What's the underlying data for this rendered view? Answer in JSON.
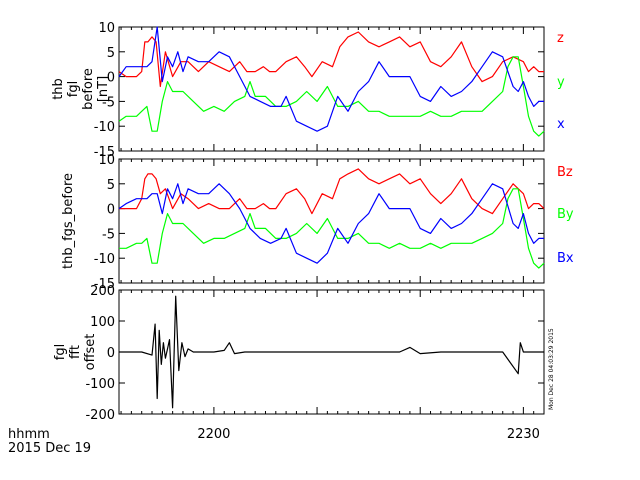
{
  "colors": {
    "x": "#0000ff",
    "y": "#00ff00",
    "z": "#ff0000",
    "axis": "#000000"
  },
  "chart_data": [
    {
      "type": "line",
      "ylabel": [
        "thb",
        "fgl",
        "before",
        "[nT]"
      ],
      "ylim": [
        -15,
        10
      ],
      "yticks": [
        -15,
        -10,
        -5,
        0,
        5,
        10
      ],
      "xlim": [
        2190.8,
        2232.0
      ],
      "legend_position": "right",
      "series": [
        {
          "name": "z",
          "color": "#ff0000",
          "x": [
            2190.8,
            2191.5,
            2192.5,
            2193.0,
            2193.3,
            2193.6,
            2194.0,
            2194.4,
            2194.8,
            2195.3,
            2196.0,
            2196.8,
            2197.5,
            2198.5,
            2199.5,
            2200.5,
            2201.5,
            2202.5,
            2203.2,
            2204.0,
            2204.8,
            2205.4,
            2206.0,
            2207.0,
            2208.0,
            2208.8,
            2209.5,
            2210.5,
            2211.5,
            2212.2,
            2213.0,
            2214.0,
            2215.0,
            2216.0,
            2217.0,
            2218.0,
            2219.0,
            2220.0,
            2221.0,
            2222.0,
            2223.0,
            2224.0,
            2225.0,
            2226.0,
            2227.0,
            2228.0,
            2229.0,
            2230.0,
            2230.5,
            2231.0,
            2231.5,
            2232.0
          ],
          "y": [
            1,
            0,
            0,
            1,
            7,
            7,
            8,
            7,
            -2,
            5,
            0,
            3,
            3,
            1,
            3,
            2,
            1,
            3,
            1,
            1,
            2,
            1,
            1,
            3,
            4,
            2,
            0,
            3,
            2,
            6,
            8,
            9,
            7,
            6,
            7,
            8,
            6,
            7,
            3,
            2,
            4,
            7,
            2,
            -1,
            0,
            3,
            4,
            3,
            1,
            2,
            1,
            1
          ]
        },
        {
          "name": "y",
          "color": "#00ff00",
          "x": [
            2190.8,
            2191.5,
            2192.5,
            2193.0,
            2193.5,
            2194.0,
            2194.5,
            2195.0,
            2195.5,
            2196.0,
            2197.0,
            2198.0,
            2199.0,
            2200.0,
            2201.0,
            2202.0,
            2203.0,
            2203.5,
            2204.0,
            2205.0,
            2206.0,
            2207.0,
            2208.0,
            2209.0,
            2210.0,
            2211.0,
            2212.0,
            2213.0,
            2214.0,
            2215.0,
            2216.0,
            2217.0,
            2218.0,
            2219.0,
            2220.0,
            2221.0,
            2222.0,
            2223.0,
            2224.0,
            2225.0,
            2226.0,
            2227.0,
            2228.0,
            2228.5,
            2229.0,
            2229.5,
            2230.0,
            2230.5,
            2231.0,
            2231.5,
            2232.0
          ],
          "y": [
            -9,
            -8,
            -8,
            -7,
            -6,
            -11,
            -11,
            -5,
            -1,
            -3,
            -3,
            -5,
            -7,
            -6,
            -7,
            -5,
            -4,
            -1,
            -4,
            -4,
            -6,
            -6,
            -5,
            -3,
            -5,
            -2,
            -6,
            -6,
            -5,
            -7,
            -7,
            -8,
            -8,
            -8,
            -8,
            -7,
            -8,
            -8,
            -7,
            -7,
            -7,
            -5,
            -3,
            2,
            4,
            4,
            -2,
            -8,
            -11,
            -12,
            -11
          ]
        },
        {
          "name": "x",
          "color": "#0000ff",
          "x": [
            2190.8,
            2191.5,
            2192.5,
            2193.5,
            2194.0,
            2194.5,
            2195.0,
            2195.5,
            2196.0,
            2196.5,
            2197.0,
            2197.5,
            2198.5,
            2199.5,
            2200.5,
            2201.5,
            2202.5,
            2203.5,
            2204.5,
            2205.5,
            2206.5,
            2207.0,
            2208.0,
            2209.0,
            2210.0,
            2211.0,
            2212.0,
            2213.0,
            2214.0,
            2215.0,
            2216.0,
            2217.0,
            2218.0,
            2219.0,
            2220.0,
            2221.0,
            2222.0,
            2223.0,
            2224.0,
            2225.0,
            2226.0,
            2227.0,
            2228.0,
            2229.0,
            2229.5,
            2230.0,
            2230.5,
            2231.0,
            2231.5,
            2232.0
          ],
          "y": [
            0,
            2,
            2,
            2,
            3,
            10,
            -1,
            4,
            2,
            5,
            1,
            4,
            3,
            3,
            5,
            4,
            0,
            -4,
            -5,
            -6,
            -6,
            -4,
            -9,
            -10,
            -11,
            -10,
            -4,
            -7,
            -3,
            -1,
            3,
            0,
            0,
            0,
            -4,
            -5,
            -2,
            -4,
            -3,
            -1,
            2,
            5,
            4,
            -2,
            -3,
            -1,
            -4,
            -6,
            -5,
            -5
          ]
        }
      ]
    },
    {
      "type": "line",
      "ylabel": [
        "thb_fgs_before"
      ],
      "ylim": [
        -15,
        10
      ],
      "yticks": [
        -15,
        -10,
        -5,
        0,
        5,
        10
      ],
      "xlim": [
        2190.8,
        2232.0
      ],
      "legend_position": "right",
      "series": [
        {
          "name": "Bz",
          "color": "#ff0000",
          "x": [
            2190.8,
            2191.5,
            2192.5,
            2193.0,
            2193.3,
            2193.6,
            2194.0,
            2194.4,
            2194.8,
            2195.3,
            2196.0,
            2196.8,
            2197.5,
            2198.5,
            2199.5,
            2200.5,
            2201.5,
            2202.5,
            2203.2,
            2204.0,
            2204.8,
            2205.4,
            2206.0,
            2207.0,
            2208.0,
            2208.8,
            2209.5,
            2210.5,
            2211.5,
            2212.2,
            2213.0,
            2214.0,
            2215.0,
            2216.0,
            2217.0,
            2218.0,
            2219.0,
            2220.0,
            2221.0,
            2222.0,
            2223.0,
            2224.0,
            2225.0,
            2226.0,
            2227.0,
            2228.0,
            2229.0,
            2230.0,
            2230.5,
            2231.0,
            2231.5,
            2232.0
          ],
          "y": [
            0,
            0,
            0,
            2,
            6,
            7,
            7,
            6,
            3,
            4,
            0,
            3,
            2,
            0,
            1,
            0,
            0,
            2,
            0,
            0,
            1,
            0,
            0,
            3,
            4,
            2,
            -1,
            3,
            2,
            6,
            7,
            8,
            6,
            5,
            6,
            7,
            5,
            6,
            3,
            1,
            3,
            6,
            2,
            0,
            -1,
            2,
            5,
            3,
            0,
            1,
            1,
            0
          ]
        },
        {
          "name": "By",
          "color": "#00ff00",
          "x": [
            2190.8,
            2191.5,
            2192.5,
            2193.0,
            2193.5,
            2194.0,
            2194.5,
            2195.0,
            2195.5,
            2196.0,
            2197.0,
            2198.0,
            2199.0,
            2200.0,
            2201.0,
            2202.0,
            2203.0,
            2203.5,
            2204.0,
            2205.0,
            2206.0,
            2207.0,
            2208.0,
            2209.0,
            2210.0,
            2211.0,
            2212.0,
            2213.0,
            2214.0,
            2215.0,
            2216.0,
            2217.0,
            2218.0,
            2219.0,
            2220.0,
            2221.0,
            2222.0,
            2223.0,
            2224.0,
            2225.0,
            2226.0,
            2227.0,
            2228.0,
            2228.5,
            2229.0,
            2229.5,
            2230.0,
            2230.5,
            2231.0,
            2231.5,
            2232.0
          ],
          "y": [
            -8,
            -8,
            -7,
            -7,
            -6,
            -11,
            -11,
            -5,
            -1,
            -3,
            -3,
            -5,
            -7,
            -6,
            -6,
            -5,
            -4,
            -1,
            -4,
            -4,
            -6,
            -6,
            -5,
            -3,
            -5,
            -2,
            -6,
            -6,
            -5,
            -7,
            -7,
            -8,
            -7,
            -8,
            -8,
            -7,
            -8,
            -7,
            -7,
            -7,
            -6,
            -5,
            -3,
            2,
            4,
            4,
            -2,
            -8,
            -11,
            -12,
            -11
          ]
        },
        {
          "name": "Bx",
          "color": "#0000ff",
          "x": [
            2190.8,
            2191.5,
            2192.5,
            2193.5,
            2194.0,
            2194.5,
            2195.0,
            2195.5,
            2196.0,
            2196.5,
            2197.0,
            2197.5,
            2198.5,
            2199.5,
            2200.5,
            2201.5,
            2202.5,
            2203.5,
            2204.5,
            2205.5,
            2206.5,
            2207.0,
            2208.0,
            2209.0,
            2210.0,
            2211.0,
            2212.0,
            2213.0,
            2214.0,
            2215.0,
            2216.0,
            2217.0,
            2218.0,
            2219.0,
            2220.0,
            2221.0,
            2222.0,
            2223.0,
            2224.0,
            2225.0,
            2226.0,
            2227.0,
            2228.0,
            2229.0,
            2229.5,
            2230.0,
            2230.5,
            2231.0,
            2231.5,
            2232.0
          ],
          "y": [
            0,
            1,
            2,
            2,
            3,
            3,
            -1,
            4,
            2,
            5,
            1,
            4,
            3,
            3,
            5,
            3,
            0,
            -4,
            -6,
            -7,
            -6,
            -4,
            -9,
            -10,
            -11,
            -9,
            -4,
            -7,
            -3,
            -1,
            3,
            0,
            0,
            0,
            -4,
            -5,
            -2,
            -4,
            -3,
            -1,
            2,
            5,
            4,
            -3,
            -4,
            -1,
            -5,
            -7,
            -6,
            -6
          ]
        }
      ]
    },
    {
      "type": "line",
      "ylabel": [
        "fgl",
        "fft",
        "offset"
      ],
      "ylim": [
        -200,
        200
      ],
      "yticks": [
        -200,
        -100,
        0,
        100,
        200
      ],
      "xlim": [
        2190.8,
        2232.0
      ],
      "series": [
        {
          "name": "",
          "color": "#000000",
          "x": [
            2190.8,
            2193.0,
            2194.0,
            2194.3,
            2194.5,
            2194.7,
            2194.9,
            2195.1,
            2195.3,
            2195.5,
            2195.7,
            2196.0,
            2196.3,
            2196.6,
            2196.9,
            2197.2,
            2197.5,
            2198.0,
            2199.0,
            2200.0,
            2201.0,
            2201.5,
            2202.0,
            2203.0,
            2204.0,
            2205.0,
            2206.0,
            2207.0,
            2208.0,
            2210.0,
            2212.0,
            2215.0,
            2218.0,
            2219.0,
            2220.0,
            2222.0,
            2225.0,
            2228.0,
            2229.5,
            2229.7,
            2230.0,
            2232.0
          ],
          "y": [
            0,
            0,
            -10,
            90,
            -150,
            70,
            -40,
            30,
            -20,
            10,
            40,
            -180,
            180,
            -60,
            30,
            -15,
            10,
            0,
            0,
            0,
            5,
            30,
            -5,
            0,
            0,
            0,
            0,
            0,
            0,
            0,
            0,
            0,
            0,
            15,
            -5,
            0,
            0,
            0,
            -70,
            30,
            0,
            0
          ]
        }
      ]
    }
  ],
  "xaxis": {
    "ticks": [
      "2200",
      "2230"
    ],
    "tick_values": [
      2200,
      2230
    ],
    "label_line1": "hhmm",
    "label_line2": "2015 Dec 19"
  },
  "timestamp": "Mon Dec 28 04:03:29 2015"
}
